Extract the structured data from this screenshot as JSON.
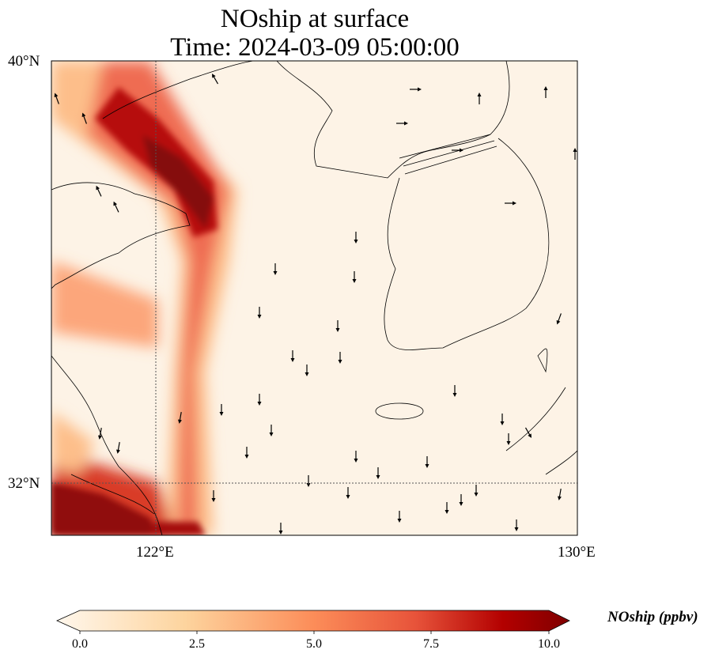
{
  "title": {
    "line1": "NOship at surface",
    "line2": "Time: 2024-03-09 05:00:00"
  },
  "map": {
    "extent": {
      "lon": [
        120,
        130
      ],
      "lat": [
        31,
        40
      ]
    },
    "lat_labels": [
      "40°N",
      "32°N"
    ],
    "lon_labels": [
      "122°E",
      "130°E"
    ],
    "gridlines": {
      "lon": 122,
      "lat": 32
    }
  },
  "colorbar": {
    "label": "NOship (ppbv)",
    "ticks": [
      "0.0",
      "2.5",
      "5.0",
      "7.5",
      "10.0"
    ],
    "range": [
      0,
      10
    ],
    "extend": "both",
    "colormap": [
      "#fff7ec",
      "#fdd49e",
      "#fc8d59",
      "#d7301f",
      "#7f0000"
    ]
  }
}
